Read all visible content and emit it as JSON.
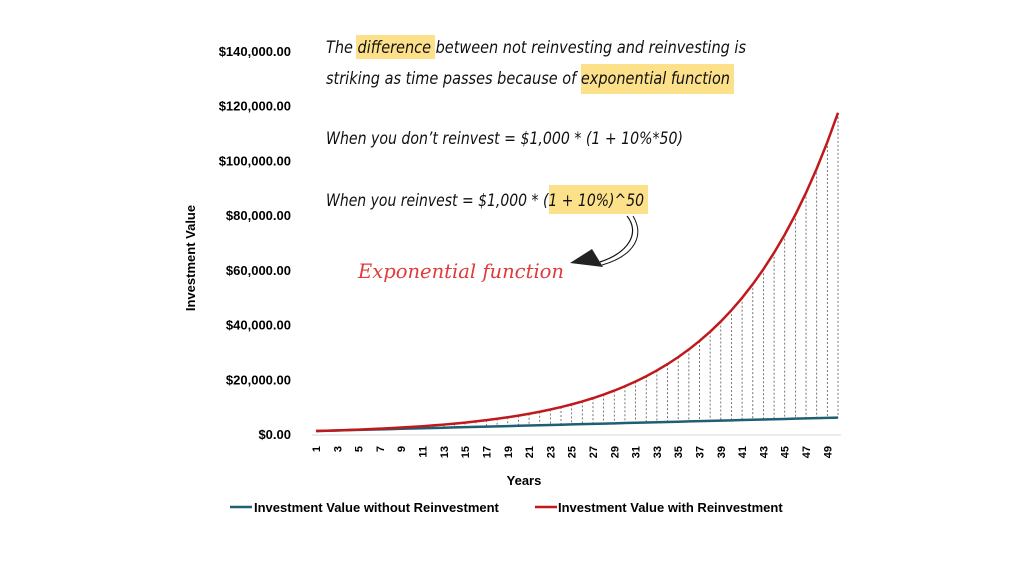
{
  "chart_data": {
    "type": "line",
    "xlabel": "Years",
    "ylabel": "Investment Value",
    "ylim": [
      0,
      140000
    ],
    "ytick_values": [
      0,
      20000,
      40000,
      60000,
      80000,
      100000,
      120000,
      140000
    ],
    "ytick_labels": [
      "$0.00",
      "$20,000.00",
      "$40,000.00",
      "$60,000.00",
      "$80,000.00",
      "$100,000.00",
      "$120,000.00",
      "$140,000.00"
    ],
    "xtick_labels": [
      "1",
      "3",
      "5",
      "7",
      "9",
      "11",
      "13",
      "15",
      "17",
      "19",
      "21",
      "23",
      "25",
      "27",
      "29",
      "31",
      "33",
      "35",
      "37",
      "39",
      "41",
      "43",
      "45",
      "47",
      "49"
    ],
    "x_range": [
      1,
      50
    ],
    "legend_position": "bottom",
    "grid": false,
    "series": [
      {
        "name": "Investment Value without Reinvestment",
        "color": "#1f5f73",
        "formula_note": "1000 * (1 + 0.10 * year)",
        "values": [
          1100,
          1200,
          1300,
          1400,
          1500,
          1600,
          1700,
          1800,
          1900,
          2000,
          2100,
          2200,
          2300,
          2400,
          2500,
          2600,
          2700,
          2800,
          2900,
          3000,
          3100,
          3200,
          3300,
          3400,
          3500,
          3600,
          3700,
          3800,
          3900,
          4000,
          4100,
          4200,
          4300,
          4400,
          4500,
          4600,
          4700,
          4800,
          4900,
          5000,
          5100,
          5200,
          5300,
          5400,
          5500,
          5600,
          5700,
          5800,
          5900,
          6000
        ]
      },
      {
        "name": "Investment Value with Reinvestment",
        "color": "#c0191c",
        "formula_note": "1000 * (1.10)^year",
        "values": [
          1100,
          1210,
          1331,
          1464,
          1611,
          1772,
          1949,
          2144,
          2358,
          2594,
          2853,
          3138,
          3452,
          3797,
          4177,
          4595,
          5054,
          5560,
          6116,
          6727,
          7400,
          8140,
          8954,
          9850,
          10835,
          11918,
          13110,
          14421,
          15863,
          17449,
          19194,
          21114,
          23225,
          25548,
          28102,
          30913,
          34004,
          37404,
          41145,
          45259,
          49785,
          54764,
          60240,
          66264,
          72890,
          80180,
          88197,
          97017,
          106719,
          117391
        ]
      }
    ]
  },
  "annotations": {
    "line1_parts": [
      "The ",
      "difference",
      " between not reinvesting and reinvesting is"
    ],
    "line2_parts": [
      "striking as time passes because of ",
      "exponential function"
    ],
    "line3": "When you don’t reinvest = $1,000 * (1 + 10%*50)",
    "line4_prefix": "When you reinvest = $1,000 * ",
    "line4_highlight": "(1 + 10%)^50",
    "red_label": "Exponential function",
    "highlight_color": "#fde08a"
  }
}
